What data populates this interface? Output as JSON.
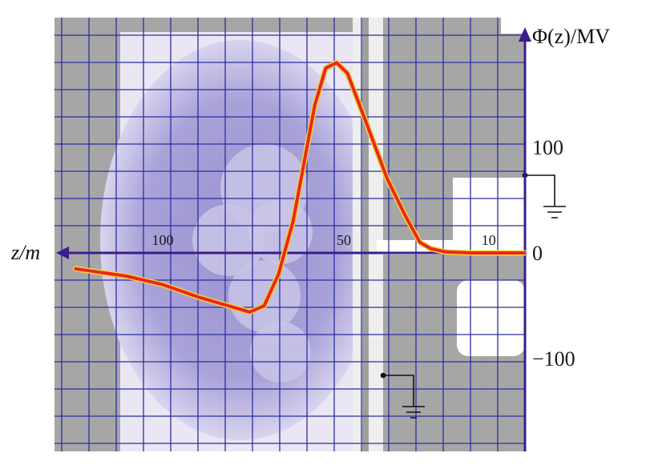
{
  "chart_data": {
    "type": "line",
    "xlabel": "z/m",
    "ylabel": "Φ(z)/MV",
    "x_direction": "decreasing-to-right",
    "x_tick_labels": [
      "100",
      "50",
      "10"
    ],
    "x_ticks": [
      100,
      50,
      10
    ],
    "y_tick_labels": [
      "100",
      "0",
      "−100"
    ],
    "y_ticks": [
      100,
      0,
      -100
    ],
    "xlim": [
      0,
      125
    ],
    "ylim": [
      -150,
      170
    ],
    "grid": true,
    "background": "photograph of a facility beneath a grid",
    "colors": {
      "curve": "#e8281e",
      "curve_glow": "#f2d23a",
      "axes": "#3a1d8c",
      "grid": "#2b2fa0"
    },
    "series": [
      {
        "values": [
          {
            "x": 124,
            "y": -15
          },
          {
            "x": 118,
            "y": -18
          },
          {
            "x": 110,
            "y": -22
          },
          {
            "x": 100,
            "y": -30
          },
          {
            "x": 90,
            "y": -42
          },
          {
            "x": 80,
            "y": -52
          },
          {
            "x": 76,
            "y": -56
          },
          {
            "x": 72,
            "y": -50
          },
          {
            "x": 68,
            "y": -20
          },
          {
            "x": 64,
            "y": 30
          },
          {
            "x": 61,
            "y": 85
          },
          {
            "x": 58,
            "y": 140
          },
          {
            "x": 55,
            "y": 175
          },
          {
            "x": 52,
            "y": 180
          },
          {
            "x": 49,
            "y": 170
          },
          {
            "x": 44,
            "y": 125
          },
          {
            "x": 38,
            "y": 70
          },
          {
            "x": 33,
            "y": 35
          },
          {
            "x": 29,
            "y": 10
          },
          {
            "x": 26,
            "y": 4
          },
          {
            "x": 22,
            "y": 1
          },
          {
            "x": 15,
            "y": 0
          },
          {
            "x": 5,
            "y": 0
          },
          {
            "x": 0,
            "y": 0
          }
        ]
      }
    ]
  }
}
